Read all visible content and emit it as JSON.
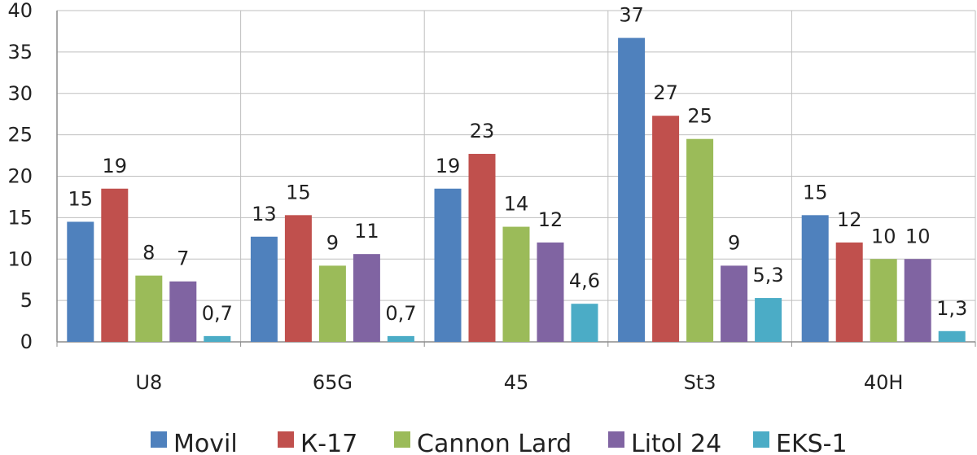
{
  "chart_data": {
    "type": "bar",
    "title": "",
    "xlabel": "",
    "ylabel": "",
    "categories": [
      "U8",
      "65G",
      "45",
      "St3",
      "40H"
    ],
    "series": [
      {
        "name": "Movil",
        "color": "#4f81bd",
        "values": [
          14.5,
          12.7,
          18.5,
          36.7,
          15.3
        ],
        "labels": [
          "15",
          "13",
          "19",
          "37",
          "15"
        ]
      },
      {
        "name": "К-17",
        "color": "#c0504d",
        "values": [
          18.5,
          15.3,
          22.7,
          27.3,
          12.0
        ],
        "labels": [
          "19",
          "15",
          "23",
          "27",
          "12"
        ]
      },
      {
        "name": "Cannon Lard",
        "color": "#9bbb59",
        "values": [
          8.0,
          9.2,
          13.9,
          24.5,
          10.0
        ],
        "labels": [
          "8",
          "9",
          "14",
          "25",
          "10"
        ]
      },
      {
        "name": "Litol 24",
        "color": "#8064a2",
        "values": [
          7.3,
          10.6,
          12.0,
          9.2,
          10.0
        ],
        "labels": [
          "7",
          "11",
          "12",
          "9",
          "10"
        ]
      },
      {
        "name": "EKS-1",
        "color": "#4bacc6",
        "values": [
          0.7,
          0.7,
          4.6,
          5.3,
          1.3
        ],
        "labels": [
          "0,7",
          "0,7",
          "4,6",
          "5,3",
          "1,3"
        ]
      }
    ],
    "ylim": [
      0,
      40
    ],
    "yticks": [
      0,
      5,
      10,
      15,
      20,
      25,
      30,
      35,
      40
    ],
    "grid": true,
    "legend_position": "bottom"
  }
}
